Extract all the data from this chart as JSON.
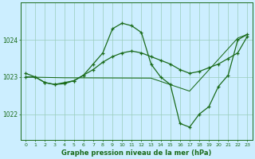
{
  "background_color": "#cceeff",
  "grid_color": "#99ccbb",
  "line_color": "#1a6b1a",
  "title": "Graphe pression niveau de la mer (hPa)",
  "ylabel_ticks": [
    1022,
    1023,
    1024
  ],
  "xlim": [
    -0.5,
    23.5
  ],
  "ylim": [
    1021.3,
    1025.0
  ],
  "series_peak": {
    "x": [
      0,
      1,
      2,
      3,
      4,
      5,
      6,
      7,
      8,
      9,
      10,
      11,
      12,
      13,
      14,
      15,
      16,
      17,
      18,
      19,
      20,
      21,
      22,
      23
    ],
    "y": [
      1023.1,
      1023.0,
      1022.85,
      1022.8,
      1022.82,
      1022.9,
      1023.05,
      1023.35,
      1023.65,
      1024.3,
      1024.45,
      1024.38,
      1024.2,
      1023.35,
      1023.0,
      1022.8,
      1021.75,
      1021.65,
      1022.0,
      1022.2,
      1022.75,
      1023.05,
      1024.0,
      1024.15
    ],
    "marker": "+"
  },
  "series_rise": {
    "x": [
      0,
      1,
      2,
      3,
      4,
      5,
      6,
      7,
      8,
      9,
      10,
      11,
      12,
      13,
      14,
      15,
      16,
      17,
      18,
      19,
      20,
      21,
      22,
      23
    ],
    "y": [
      1023.0,
      1023.0,
      1022.85,
      1022.8,
      1022.85,
      1022.9,
      1023.05,
      1023.2,
      1023.4,
      1023.55,
      1023.65,
      1023.7,
      1023.65,
      1023.55,
      1023.45,
      1023.35,
      1023.2,
      1023.1,
      1023.15,
      1023.25,
      1023.35,
      1023.5,
      1023.65,
      1024.1
    ],
    "marker": "+"
  },
  "series_flat": {
    "x": [
      0,
      4,
      13,
      17,
      22,
      23
    ],
    "y": [
      1023.0,
      1022.98,
      1022.97,
      1022.62,
      1024.05,
      1024.15
    ],
    "marker": null
  }
}
